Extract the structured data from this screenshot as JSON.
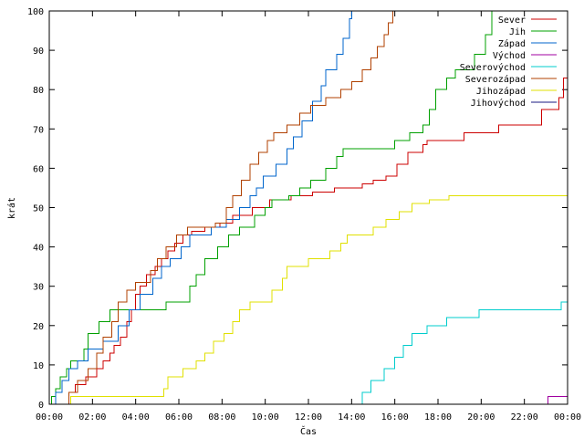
{
  "chart_data": {
    "type": "line",
    "xlabel": "Čas",
    "ylabel": "krát",
    "xlim": [
      0,
      24
    ],
    "ylim": [
      0,
      100
    ],
    "grid": false,
    "legend_position": "top-right",
    "x_ticks": [
      {
        "value": 0,
        "label": "00:00"
      },
      {
        "value": 2,
        "label": "02:00"
      },
      {
        "value": 4,
        "label": "04:00"
      },
      {
        "value": 6,
        "label": "06:00"
      },
      {
        "value": 8,
        "label": "08:00"
      },
      {
        "value": 10,
        "label": "10:00"
      },
      {
        "value": 12,
        "label": "12:00"
      },
      {
        "value": 14,
        "label": "14:00"
      },
      {
        "value": 16,
        "label": "16:00"
      },
      {
        "value": 18,
        "label": "18:00"
      },
      {
        "value": 20,
        "label": "20:00"
      },
      {
        "value": 22,
        "label": "22:00"
      },
      {
        "value": 24,
        "label": "00:00"
      }
    ],
    "y_ticks": [
      0,
      10,
      20,
      30,
      40,
      50,
      60,
      70,
      80,
      90,
      100
    ],
    "series": [
      {
        "name": "Sever",
        "color": "#cc0000",
        "points": [
          [
            0.8,
            0
          ],
          [
            0.9,
            3
          ],
          [
            1.2,
            5
          ],
          [
            1.7,
            7
          ],
          [
            2.2,
            9
          ],
          [
            2.5,
            11
          ],
          [
            2.8,
            13
          ],
          [
            3.0,
            15
          ],
          [
            3.3,
            17
          ],
          [
            3.6,
            21
          ],
          [
            3.8,
            24
          ],
          [
            4.0,
            28
          ],
          [
            4.2,
            30
          ],
          [
            4.5,
            33
          ],
          [
            4.9,
            35
          ],
          [
            5.2,
            37
          ],
          [
            5.5,
            39
          ],
          [
            5.8,
            41
          ],
          [
            6.2,
            43
          ],
          [
            6.6,
            44
          ],
          [
            7.2,
            45
          ],
          [
            7.9,
            46
          ],
          [
            8.5,
            48
          ],
          [
            9.4,
            50
          ],
          [
            10.2,
            52
          ],
          [
            11.2,
            53
          ],
          [
            12.2,
            54
          ],
          [
            13.2,
            55
          ],
          [
            14.5,
            56
          ],
          [
            15.0,
            57
          ],
          [
            15.6,
            58
          ],
          [
            16.1,
            61
          ],
          [
            16.6,
            64
          ],
          [
            17.3,
            66
          ],
          [
            17.5,
            67
          ],
          [
            19.2,
            69
          ],
          [
            20.8,
            71
          ],
          [
            22.8,
            75
          ],
          [
            23.6,
            78
          ],
          [
            23.8,
            83
          ],
          [
            24.0,
            85
          ]
        ]
      },
      {
        "name": "Jih",
        "color": "#00a000",
        "points": [
          [
            0,
            0
          ],
          [
            0.1,
            2
          ],
          [
            0.3,
            4
          ],
          [
            0.5,
            7
          ],
          [
            0.8,
            9
          ],
          [
            1.0,
            11
          ],
          [
            1.6,
            14
          ],
          [
            1.8,
            18
          ],
          [
            2.3,
            21
          ],
          [
            2.8,
            24
          ],
          [
            5.4,
            26
          ],
          [
            6.5,
            30
          ],
          [
            6.8,
            33
          ],
          [
            7.2,
            37
          ],
          [
            7.8,
            40
          ],
          [
            8.3,
            43
          ],
          [
            8.8,
            45
          ],
          [
            9.5,
            48
          ],
          [
            10.0,
            50
          ],
          [
            10.3,
            52
          ],
          [
            11.1,
            53
          ],
          [
            11.6,
            55
          ],
          [
            12.1,
            57
          ],
          [
            12.8,
            60
          ],
          [
            13.3,
            63
          ],
          [
            13.6,
            65
          ],
          [
            16.0,
            67
          ],
          [
            16.7,
            69
          ],
          [
            17.3,
            71
          ],
          [
            17.6,
            75
          ],
          [
            17.9,
            80
          ],
          [
            18.4,
            83
          ],
          [
            18.8,
            85
          ],
          [
            19.7,
            89
          ],
          [
            20.2,
            94
          ],
          [
            20.5,
            100
          ]
        ]
      },
      {
        "name": "Západ",
        "color": "#0066cc",
        "points": [
          [
            0,
            0
          ],
          [
            0.3,
            3
          ],
          [
            0.6,
            6
          ],
          [
            0.9,
            9
          ],
          [
            1.3,
            11
          ],
          [
            1.8,
            14
          ],
          [
            2.5,
            16
          ],
          [
            3.2,
            20
          ],
          [
            3.7,
            24
          ],
          [
            4.2,
            28
          ],
          [
            4.8,
            32
          ],
          [
            5.2,
            35
          ],
          [
            5.6,
            37
          ],
          [
            6.1,
            40
          ],
          [
            6.5,
            43
          ],
          [
            7.5,
            45
          ],
          [
            8.2,
            47
          ],
          [
            8.8,
            50
          ],
          [
            9.3,
            53
          ],
          [
            9.6,
            55
          ],
          [
            9.9,
            58
          ],
          [
            10.5,
            61
          ],
          [
            11.0,
            65
          ],
          [
            11.3,
            68
          ],
          [
            11.7,
            72
          ],
          [
            12.2,
            77
          ],
          [
            12.6,
            81
          ],
          [
            12.8,
            85
          ],
          [
            13.3,
            89
          ],
          [
            13.6,
            93
          ],
          [
            13.9,
            98
          ],
          [
            14.0,
            100
          ]
        ]
      },
      {
        "name": "Východ",
        "color": "#a000a0",
        "points": [
          [
            23.0,
            0
          ],
          [
            23.1,
            2
          ],
          [
            24.0,
            2
          ]
        ]
      },
      {
        "name": "Severovýchod",
        "color": "#00cccc",
        "points": [
          [
            14.3,
            0
          ],
          [
            14.5,
            3
          ],
          [
            14.9,
            6
          ],
          [
            15.5,
            9
          ],
          [
            16.0,
            12
          ],
          [
            16.4,
            15
          ],
          [
            16.8,
            18
          ],
          [
            17.5,
            20
          ],
          [
            18.4,
            22
          ],
          [
            19.9,
            24
          ],
          [
            23.7,
            26
          ],
          [
            24.0,
            28
          ]
        ]
      },
      {
        "name": "Severozápad",
        "color": "#b04000",
        "points": [
          [
            0.7,
            0
          ],
          [
            0.9,
            3
          ],
          [
            1.3,
            6
          ],
          [
            1.8,
            9
          ],
          [
            2.2,
            13
          ],
          [
            2.5,
            17
          ],
          [
            2.9,
            21
          ],
          [
            3.2,
            26
          ],
          [
            3.6,
            29
          ],
          [
            4.0,
            31
          ],
          [
            4.7,
            34
          ],
          [
            5.0,
            37
          ],
          [
            5.4,
            40
          ],
          [
            5.9,
            43
          ],
          [
            6.4,
            45
          ],
          [
            7.7,
            46
          ],
          [
            8.2,
            50
          ],
          [
            8.5,
            53
          ],
          [
            8.9,
            57
          ],
          [
            9.3,
            61
          ],
          [
            9.7,
            64
          ],
          [
            10.1,
            67
          ],
          [
            10.4,
            69
          ],
          [
            11.0,
            71
          ],
          [
            11.6,
            74
          ],
          [
            12.1,
            76
          ],
          [
            12.8,
            78
          ],
          [
            13.5,
            80
          ],
          [
            14.0,
            82
          ],
          [
            14.5,
            85
          ],
          [
            14.9,
            88
          ],
          [
            15.2,
            91
          ],
          [
            15.5,
            94
          ],
          [
            15.7,
            97
          ],
          [
            15.9,
            100
          ]
        ]
      },
      {
        "name": "Jihozápad",
        "color": "#e0e000",
        "points": [
          [
            0.9,
            0
          ],
          [
            1.0,
            2
          ],
          [
            5.3,
            4
          ],
          [
            5.5,
            7
          ],
          [
            6.2,
            9
          ],
          [
            6.8,
            11
          ],
          [
            7.2,
            13
          ],
          [
            7.6,
            16
          ],
          [
            8.1,
            18
          ],
          [
            8.5,
            21
          ],
          [
            8.8,
            24
          ],
          [
            9.3,
            26
          ],
          [
            10.3,
            29
          ],
          [
            10.8,
            32
          ],
          [
            11.0,
            35
          ],
          [
            12.0,
            37
          ],
          [
            13.0,
            39
          ],
          [
            13.5,
            41
          ],
          [
            13.8,
            43
          ],
          [
            15.0,
            45
          ],
          [
            15.6,
            47
          ],
          [
            16.2,
            49
          ],
          [
            16.8,
            51
          ],
          [
            17.6,
            52
          ],
          [
            18.5,
            53
          ],
          [
            24.0,
            53
          ]
        ]
      },
      {
        "name": "Jihovýchod",
        "color": "#1a1a80",
        "points": []
      }
    ]
  }
}
